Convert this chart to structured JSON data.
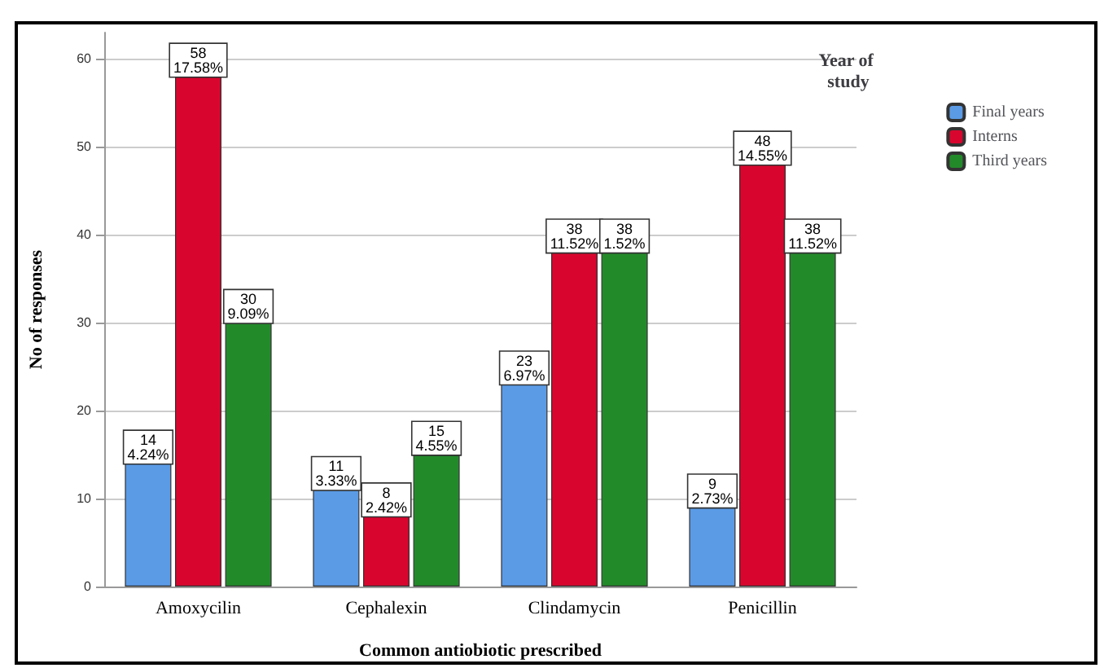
{
  "chart_data": {
    "type": "bar",
    "xlabel": "Common antiobiotic prescribed",
    "ylabel": "No of responses",
    "legend_title": "Year of study",
    "categories": [
      "Amoxycilin",
      "Cephalexin",
      "Clindamycin",
      "Penicillin"
    ],
    "series": [
      {
        "name": "Final years",
        "color": "#5b9be6",
        "values": [
          14,
          11,
          23,
          9
        ],
        "value_labels": [
          "14\n4.24%",
          "11\n3.33%",
          "23\n6.97%",
          "9\n2.73%"
        ]
      },
      {
        "name": "Interns",
        "color": "#d8062e",
        "values": [
          58,
          8,
          38,
          48
        ],
        "value_labels": [
          "58\n17.58%",
          "8\n2.42%",
          "38\n11.52%",
          "48\n14.55%"
        ]
      },
      {
        "name": "Third years",
        "color": "#238a2a",
        "values": [
          30,
          15,
          38,
          38
        ],
        "value_labels": [
          "30\n9.09%",
          "15\n4.55%",
          "38\n1.52%",
          "38\n11.52%"
        ]
      }
    ],
    "ylim": [
      0,
      63
    ],
    "yticks": [
      0,
      10,
      20,
      30,
      40,
      50,
      60
    ],
    "grid": "y",
    "legend": "top right"
  }
}
